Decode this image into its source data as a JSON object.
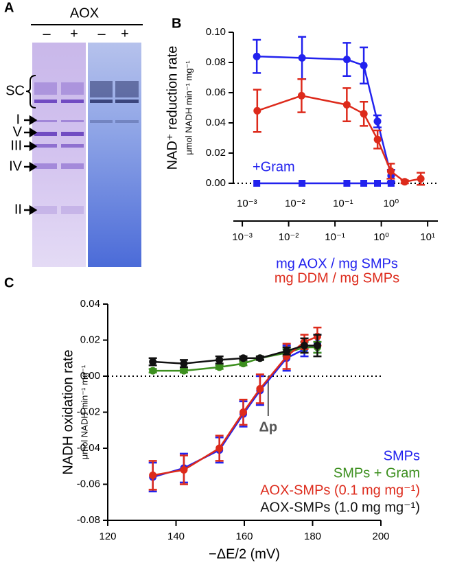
{
  "gel": {
    "panel": "A",
    "header": "AOX",
    "lanes": [
      "–",
      "+",
      "–",
      "+"
    ],
    "labels": [
      "SC",
      "I",
      "V",
      "III",
      "IV",
      "II"
    ]
  },
  "chart_data": [
    {
      "type": "line",
      "panel": "B",
      "ylabel": "NAD⁺ reduction rate",
      "ylabel_units": "μmol NADH min⁻¹ mg⁻¹",
      "xscale": "log",
      "zero_line": true,
      "xlim": [
        0.00064,
        16.6
      ],
      "xticks": [
        {
          "value": 0.001,
          "label": "10⁻³"
        },
        {
          "value": 0.01,
          "label": "10⁻²"
        },
        {
          "value": 0.1,
          "label": "10⁻¹"
        },
        {
          "value": 1,
          "label": "10⁰"
        },
        {
          "value": 10,
          "label": "10¹"
        }
      ],
      "x2lim": [
        0.00052,
        9.4
      ],
      "x2ticks": [
        {
          "value": 0.001,
          "label": "10⁻³"
        },
        {
          "value": 0.01,
          "label": "10⁻²"
        },
        {
          "value": 0.1,
          "label": "10⁻¹"
        },
        {
          "value": 1,
          "label": "10⁰"
        }
      ],
      "ylim": [
        0,
        0.1
      ],
      "yticks": [
        {
          "value": 0,
          "label": "0.00"
        },
        {
          "value": 0.02,
          "label": "0.02"
        },
        {
          "value": 0.04,
          "label": "0.04"
        },
        {
          "value": 0.06,
          "label": "0.06"
        },
        {
          "value": 0.08,
          "label": "0.08"
        },
        {
          "value": 0.1,
          "label": "0.10"
        }
      ],
      "series": [
        {
          "name": "mg AOX / mg SMPs",
          "color": "#2222ee",
          "axis": "x2",
          "marker": "circle",
          "x": [
            0.0016,
            0.014,
            0.12,
            0.27,
            0.52,
            1.0
          ],
          "values": [
            0.084,
            0.083,
            0.082,
            0.078,
            0.041,
            0.005
          ],
          "errors": [
            0.011,
            0.014,
            0.011,
            0.012,
            0.004,
            0.004
          ]
        },
        {
          "name": "mg DDM / mg SMPs",
          "color": "#dd2a1b",
          "marker": "circle",
          "x": [
            0.0021,
            0.019,
            0.18,
            0.42,
            0.83,
            1.6,
            3.2,
            7.1
          ],
          "values": [
            0.048,
            0.058,
            0.052,
            0.046,
            0.029,
            0.008,
            0.001,
            0.003
          ],
          "errors": [
            0.014,
            0.011,
            0.011,
            0.008,
            0.006,
            0.005,
            0.001,
            0.004
          ]
        },
        {
          "name": "+Gram",
          "color": "#2222ee",
          "axis": "x2",
          "marker": "square",
          "x": [
            0.0016,
            0.014,
            0.12,
            0.27,
            0.52,
            1.0
          ],
          "values": [
            0,
            0,
            0,
            0,
            0,
            0
          ]
        }
      ]
    },
    {
      "type": "line",
      "panel": "C",
      "ylabel": "NADH oxidation rate",
      "ylabel_units": "μmol NADH min⁻¹ mg⁻¹",
      "xlabel": "−ΔE/2 (mV)",
      "zero_line": true,
      "legend": "lower right",
      "annotation": {
        "text": "Δp",
        "x": 167
      },
      "xlim": [
        120,
        200
      ],
      "xticks": [
        120,
        140,
        160,
        180,
        200
      ],
      "ylim": [
        -0.08,
        0.04
      ],
      "yticks": [
        {
          "value": -0.08,
          "label": "-0.08"
        },
        {
          "value": -0.06,
          "label": "-0.06"
        },
        {
          "value": -0.04,
          "label": "-0.04"
        },
        {
          "value": -0.02,
          "label": "-0.02"
        },
        {
          "value": 0,
          "label": "0.00"
        },
        {
          "value": 0.02,
          "label": "0.02"
        },
        {
          "value": 0.04,
          "label": "0.04"
        }
      ],
      "x": [
        133.2,
        142.3,
        152.7,
        159.7,
        164.6,
        172.4,
        177.6,
        181.4
      ],
      "series": [
        {
          "name": "SMPs",
          "color": "#2222ee",
          "marker": "circle",
          "values": [
            -0.056,
            -0.051,
            -0.041,
            -0.021,
            -0.008,
            0.01,
            0.015,
            0.018
          ],
          "errors": [
            0.008,
            0.008,
            0.007,
            0.007,
            0.008,
            0.007,
            0.004,
            0.005
          ]
        },
        {
          "name": "SMPs + Gram",
          "color": "#3c8f1e",
          "marker": "circle",
          "values": [
            0.003,
            0.003,
            0.005,
            0.007,
            0.01,
            0.013,
            0.016,
            0.016
          ],
          "errors": [
            0.001,
            0.001,
            0.001,
            0.001,
            0.001,
            0.002,
            0.003,
            0.003
          ]
        },
        {
          "name": "AOX-SMPs (0.1 mg mg⁻¹)",
          "color": "#dd2a1b",
          "marker": "circle",
          "values": [
            -0.055,
            -0.052,
            -0.04,
            -0.02,
            -0.007,
            0.011,
            0.019,
            0.022
          ],
          "errors": [
            0.008,
            0.008,
            0.007,
            0.007,
            0.008,
            0.007,
            0.004,
            0.005
          ]
        },
        {
          "name": "AOX-SMPs (1.0 mg mg⁻¹)",
          "color": "#111111",
          "marker": "circle",
          "values": [
            0.008,
            0.007,
            0.009,
            0.01,
            0.01,
            0.014,
            0.017,
            0.017
          ],
          "errors": [
            0.002,
            0.002,
            0.002,
            0.001,
            0.001,
            0.002,
            0.004,
            0.006
          ]
        }
      ]
    }
  ]
}
